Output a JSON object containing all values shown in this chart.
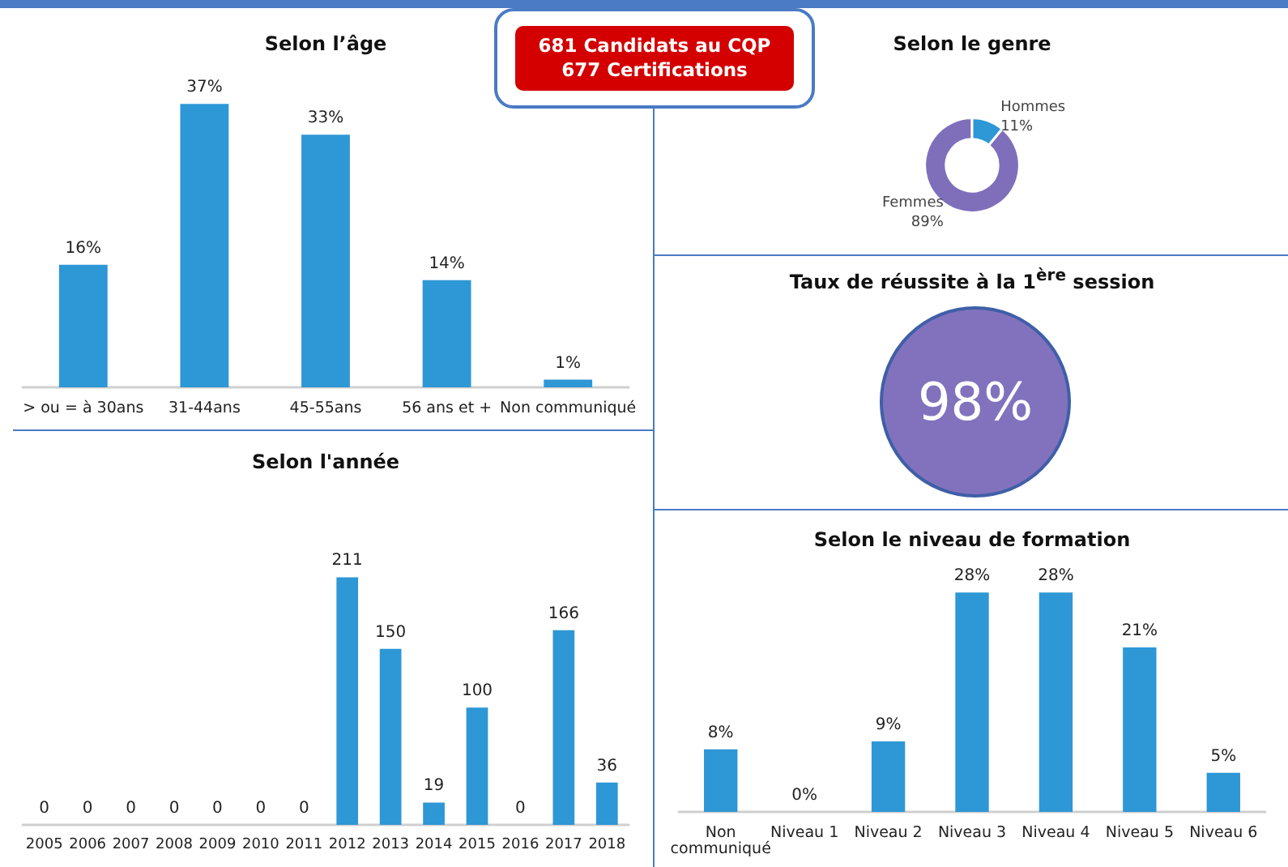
{
  "chart_data": [
    {
      "type": "bar",
      "title": "Selon l’âge",
      "categories": [
        "> ou = à 30ans",
        "31-44ans",
        "45-55ans",
        "56 ans et +",
        "Non communiqué"
      ],
      "values": [
        16,
        37,
        33,
        14,
        1
      ],
      "value_labels": [
        "16%",
        "37%",
        "33%",
        "14%",
        "1%"
      ],
      "color": "#2e97d6"
    },
    {
      "type": "other",
      "annotations": [
        "681 Candidats au CQP",
        "677 Certifications"
      ]
    },
    {
      "type": "donut",
      "title": "Selon le genre",
      "categories": [
        "Femmes",
        "Hommes"
      ],
      "values": [
        89,
        11
      ],
      "value_labels": [
        "89%",
        "11%"
      ],
      "colors": [
        "#7f6fbb",
        "#2e97d6"
      ]
    },
    {
      "type": "other",
      "title": "Taux de réussite à la 1$^{ère}$ session",
      "annotations": [
        "98%"
      ]
    },
    {
      "type": "bar",
      "title": "Selon l'année",
      "categories": [
        "2005",
        "2006",
        "2007",
        "2008",
        "2009",
        "2010",
        "2011",
        "2012",
        "2013",
        "2014",
        "2015",
        "2016",
        "2017",
        "2018"
      ],
      "values": [
        0,
        0,
        0,
        0,
        0,
        0,
        0,
        211,
        150,
        19,
        100,
        0,
        166,
        36
      ],
      "data_labels": true,
      "color": "#2e97d6"
    },
    {
      "type": "bar",
      "title": "Selon le niveau de formation",
      "categories": [
        "Non\ncommuniqué",
        "Niveau 1",
        "Niveau 2",
        "Niveau 3",
        "Niveau 4",
        "Niveau 5",
        "Niveau 6"
      ],
      "values": [
        8,
        0,
        9,
        28,
        28,
        21,
        5
      ],
      "value_labels": [
        "8%",
        "0%",
        "9%",
        "28%",
        "28%",
        "21%",
        "5%"
      ],
      "color": "#2e97d6"
    }
  ]
}
